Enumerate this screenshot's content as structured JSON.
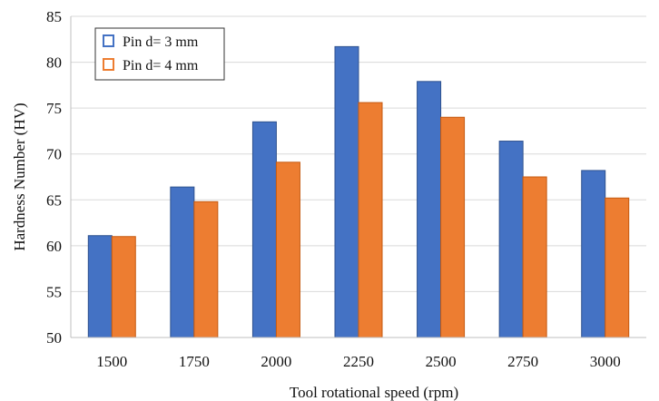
{
  "chart_data": {
    "type": "bar",
    "title": "",
    "xlabel": "Tool rotational speed (rpm)",
    "ylabel": "Hardness Number (HV)",
    "categories": [
      "1500",
      "1750",
      "2000",
      "2250",
      "2500",
      "2750",
      "3000"
    ],
    "series": [
      {
        "name": "Pin d= 3 mm",
        "color": "#4472c4",
        "values": [
          61.1,
          66.4,
          73.5,
          81.7,
          77.9,
          71.4,
          68.2
        ]
      },
      {
        "name": "Pin d= 4 mm",
        "color": "#ed7d31",
        "values": [
          61.0,
          64.8,
          69.1,
          75.6,
          74.0,
          67.5,
          65.2
        ]
      }
    ],
    "ylim": [
      50,
      85
    ],
    "yticks": [
      "50",
      "55",
      "60",
      "65",
      "70",
      "75",
      "80",
      "85"
    ],
    "grid": true,
    "legend_position": "top-left"
  }
}
